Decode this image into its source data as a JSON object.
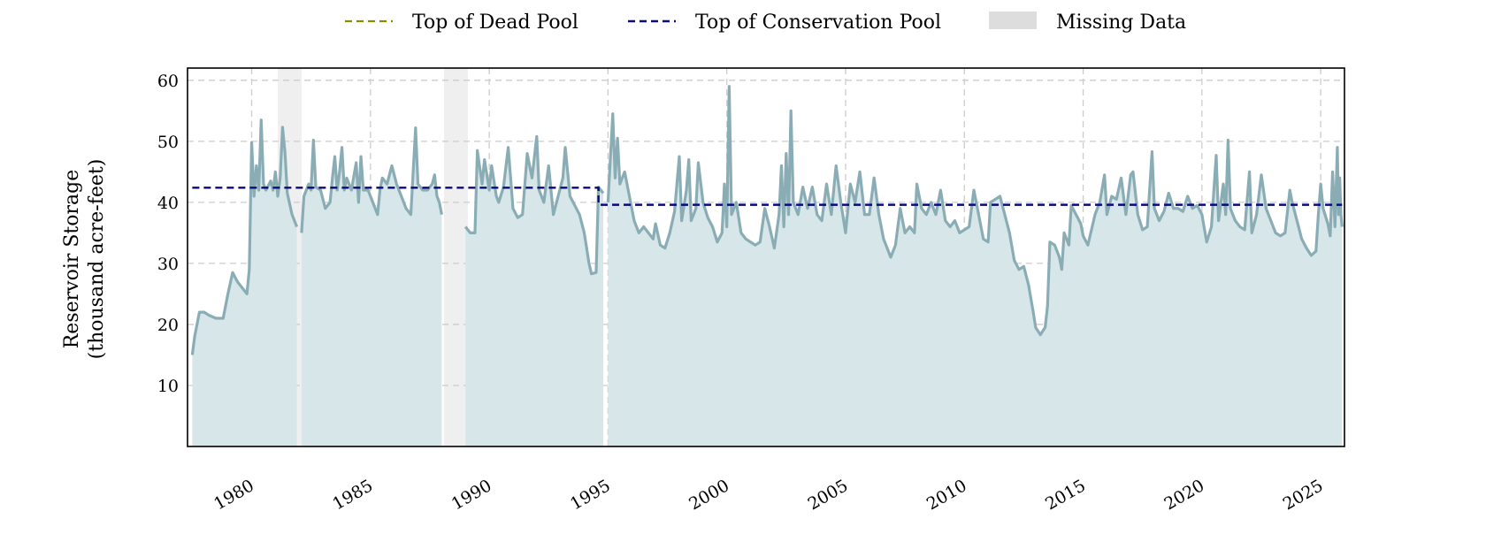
{
  "colors": {
    "storage_line": "#8aadb5",
    "storage_fill": "#d6e6e9",
    "dead_pool": "#8b8b00",
    "conservation_pool": "#0a0a7a",
    "missing": "#efefef",
    "missing_legend": "#dddddd",
    "grid": "#cccccc"
  },
  "chart_data": {
    "type": "area",
    "xlabel": "",
    "ylabel": [
      "Reservoir Storage",
      "(thousand acre-feet)"
    ],
    "xlim": [
      1977.3,
      2026.0
    ],
    "ylim": [
      0,
      62
    ],
    "x_ticks": [
      1980,
      1985,
      1990,
      1995,
      2000,
      2005,
      2010,
      2015,
      2020,
      2025
    ],
    "y_ticks": [
      10,
      20,
      30,
      40,
      50,
      60
    ],
    "grid": true,
    "legend": {
      "placement": "top-center",
      "entries": [
        "Top of Dead Pool",
        "Top of Conservation Pool",
        "Missing Data"
      ]
    },
    "missing_periods": [
      [
        1981.1,
        1982.1
      ],
      [
        1988.1,
        1989.1
      ]
    ],
    "top_of_dead_pool": [],
    "top_of_conservation_pool": [
      [
        1977.5,
        42.4
      ],
      [
        1994.6,
        42.4
      ],
      [
        1994.6,
        39.6
      ],
      [
        2025.9,
        39.6
      ]
    ],
    "series": [
      {
        "segment": 1,
        "points": [
          [
            1977.5,
            15
          ],
          [
            1977.6,
            18
          ],
          [
            1977.8,
            22
          ],
          [
            1978.0,
            22
          ],
          [
            1978.2,
            21.5
          ],
          [
            1978.5,
            21
          ],
          [
            1978.8,
            21
          ],
          [
            1979.0,
            25
          ],
          [
            1979.2,
            28.5
          ],
          [
            1979.4,
            27
          ],
          [
            1979.6,
            26
          ],
          [
            1979.8,
            25
          ],
          [
            1979.9,
            29
          ],
          [
            1980.0,
            49.8
          ],
          [
            1980.1,
            41
          ],
          [
            1980.2,
            46
          ],
          [
            1980.3,
            42
          ],
          [
            1980.4,
            53.5
          ],
          [
            1980.5,
            43
          ],
          [
            1980.6,
            42
          ],
          [
            1980.8,
            43.5
          ],
          [
            1980.9,
            42
          ],
          [
            1981.0,
            45
          ],
          [
            1981.1,
            41
          ],
          [
            1981.2,
            44
          ],
          [
            1981.3,
            52.3
          ],
          [
            1981.4,
            48.3
          ],
          [
            1981.5,
            41.5
          ],
          [
            1981.7,
            38
          ],
          [
            1981.9,
            36
          ]
        ]
      },
      {
        "segment": 2,
        "points": [
          [
            1982.1,
            35
          ],
          [
            1982.2,
            41
          ],
          [
            1982.3,
            42
          ],
          [
            1982.4,
            43
          ],
          [
            1982.5,
            42
          ],
          [
            1982.6,
            50.2
          ],
          [
            1982.7,
            42.5
          ],
          [
            1982.9,
            42
          ],
          [
            1983.1,
            39
          ],
          [
            1983.3,
            40
          ],
          [
            1983.4,
            44
          ],
          [
            1983.5,
            47.5
          ],
          [
            1983.6,
            42
          ],
          [
            1983.7,
            45
          ],
          [
            1983.8,
            49
          ],
          [
            1983.9,
            42
          ],
          [
            1984.0,
            44
          ],
          [
            1984.2,
            42
          ],
          [
            1984.4,
            46.5
          ],
          [
            1984.5,
            40
          ],
          [
            1984.6,
            47.5
          ],
          [
            1984.7,
            42
          ],
          [
            1984.9,
            42
          ],
          [
            1985.1,
            40
          ],
          [
            1985.3,
            38
          ],
          [
            1985.4,
            42
          ],
          [
            1985.5,
            44
          ],
          [
            1985.7,
            43
          ],
          [
            1985.9,
            46
          ],
          [
            1986.1,
            43
          ],
          [
            1986.3,
            41
          ],
          [
            1986.5,
            39
          ],
          [
            1986.7,
            38
          ],
          [
            1986.9,
            52.2
          ],
          [
            1987.0,
            43
          ],
          [
            1987.2,
            42
          ],
          [
            1987.4,
            42
          ],
          [
            1987.6,
            43
          ],
          [
            1987.7,
            44.5
          ],
          [
            1987.8,
            41
          ],
          [
            1987.9,
            40
          ],
          [
            1988.0,
            38
          ]
        ]
      },
      {
        "segment": 3,
        "points": [
          [
            1989.0,
            36
          ],
          [
            1989.2,
            35
          ],
          [
            1989.4,
            35
          ],
          [
            1989.5,
            48.5
          ],
          [
            1989.7,
            43
          ],
          [
            1989.8,
            47
          ],
          [
            1990.0,
            42
          ],
          [
            1990.1,
            46
          ],
          [
            1990.3,
            41
          ],
          [
            1990.4,
            40
          ],
          [
            1990.6,
            42.5
          ],
          [
            1990.8,
            49
          ],
          [
            1991.0,
            39
          ],
          [
            1991.2,
            37.5
          ],
          [
            1991.4,
            38
          ],
          [
            1991.6,
            48
          ],
          [
            1991.8,
            44
          ],
          [
            1992.0,
            50.8
          ],
          [
            1992.1,
            42
          ],
          [
            1992.3,
            40
          ],
          [
            1992.5,
            46
          ],
          [
            1992.7,
            38
          ],
          [
            1992.9,
            41
          ],
          [
            1993.1,
            44
          ],
          [
            1993.2,
            49
          ],
          [
            1993.4,
            41
          ],
          [
            1993.6,
            39.5
          ],
          [
            1993.8,
            38
          ],
          [
            1994.0,
            35
          ],
          [
            1994.2,
            30
          ],
          [
            1994.3,
            28.3
          ],
          [
            1994.5,
            28.5
          ],
          [
            1994.6,
            42.5
          ],
          [
            1994.8,
            41.5
          ]
        ]
      },
      {
        "segment": 4,
        "points": [
          [
            1995.0,
            40
          ],
          [
            1995.2,
            54.5
          ],
          [
            1995.3,
            44
          ],
          [
            1995.4,
            50.5
          ],
          [
            1995.5,
            43
          ],
          [
            1995.7,
            45
          ],
          [
            1995.9,
            41
          ],
          [
            1996.1,
            37
          ],
          [
            1996.3,
            35
          ],
          [
            1996.5,
            36
          ],
          [
            1996.7,
            35
          ],
          [
            1996.9,
            34
          ],
          [
            1997.0,
            36.5
          ],
          [
            1997.2,
            33
          ],
          [
            1997.4,
            32.5
          ],
          [
            1997.6,
            35
          ],
          [
            1997.8,
            38.5
          ],
          [
            1998.0,
            47.5
          ],
          [
            1998.1,
            37
          ],
          [
            1998.3,
            42
          ],
          [
            1998.4,
            47
          ],
          [
            1998.5,
            37
          ],
          [
            1998.7,
            39
          ],
          [
            1998.8,
            46.5
          ],
          [
            1999.0,
            40
          ],
          [
            1999.2,
            37.5
          ],
          [
            1999.4,
            36
          ],
          [
            1999.6,
            33.5
          ],
          [
            1999.8,
            35
          ],
          [
            1999.9,
            43
          ],
          [
            2000.0,
            36
          ],
          [
            2000.1,
            59
          ],
          [
            2000.2,
            38
          ],
          [
            2000.4,
            40
          ],
          [
            2000.6,
            35
          ],
          [
            2000.8,
            34
          ],
          [
            2001.0,
            33.5
          ],
          [
            2001.2,
            33
          ],
          [
            2001.4,
            33.5
          ],
          [
            2001.6,
            39
          ],
          [
            2001.8,
            36
          ],
          [
            2002.0,
            32.5
          ],
          [
            2002.2,
            38
          ],
          [
            2002.3,
            46
          ],
          [
            2002.4,
            36
          ],
          [
            2002.5,
            48
          ],
          [
            2002.6,
            38
          ],
          [
            2002.7,
            55
          ],
          [
            2002.8,
            40
          ],
          [
            2003.0,
            38
          ],
          [
            2003.2,
            42.5
          ],
          [
            2003.4,
            39
          ],
          [
            2003.6,
            42.5
          ],
          [
            2003.8,
            38
          ],
          [
            2004.0,
            37
          ],
          [
            2004.2,
            43
          ],
          [
            2004.4,
            38
          ],
          [
            2004.6,
            46
          ],
          [
            2004.8,
            40
          ],
          [
            2005.0,
            35
          ],
          [
            2005.2,
            43
          ],
          [
            2005.4,
            40
          ],
          [
            2005.6,
            45
          ],
          [
            2005.8,
            38
          ],
          [
            2006.0,
            38
          ],
          [
            2006.2,
            44
          ],
          [
            2006.4,
            38
          ],
          [
            2006.6,
            34
          ],
          [
            2006.9,
            31
          ],
          [
            2007.1,
            33
          ],
          [
            2007.3,
            39
          ],
          [
            2007.5,
            35
          ],
          [
            2007.7,
            36
          ],
          [
            2007.9,
            35
          ],
          [
            2008.0,
            43
          ],
          [
            2008.2,
            39
          ],
          [
            2008.4,
            38
          ],
          [
            2008.6,
            40
          ],
          [
            2008.8,
            38
          ],
          [
            2009.0,
            42
          ],
          [
            2009.2,
            37
          ],
          [
            2009.4,
            36
          ],
          [
            2009.6,
            37
          ],
          [
            2009.8,
            35
          ],
          [
            2010.0,
            35.5
          ],
          [
            2010.2,
            36
          ],
          [
            2010.4,
            42
          ],
          [
            2010.6,
            38
          ],
          [
            2010.8,
            34
          ],
          [
            2011.0,
            33.5
          ],
          [
            2011.1,
            40
          ],
          [
            2011.3,
            40.5
          ],
          [
            2011.5,
            41
          ],
          [
            2011.7,
            38
          ],
          [
            2011.9,
            35
          ],
          [
            2012.1,
            30.5
          ],
          [
            2012.3,
            29
          ],
          [
            2012.5,
            29.5
          ],
          [
            2012.7,
            26.5
          ],
          [
            2012.9,
            22
          ],
          [
            2013.0,
            19.5
          ],
          [
            2013.2,
            18.3
          ],
          [
            2013.4,
            19.5
          ],
          [
            2013.5,
            23
          ],
          [
            2013.6,
            33.5
          ],
          [
            2013.8,
            33
          ],
          [
            2014.0,
            31
          ],
          [
            2014.1,
            29
          ],
          [
            2014.2,
            35
          ],
          [
            2014.4,
            33
          ],
          [
            2014.5,
            39.5
          ],
          [
            2014.7,
            38
          ],
          [
            2014.9,
            36.5
          ],
          [
            2015.0,
            34.5
          ],
          [
            2015.2,
            33
          ],
          [
            2015.5,
            38
          ],
          [
            2015.7,
            40
          ],
          [
            2015.9,
            44.5
          ],
          [
            2016.0,
            38
          ],
          [
            2016.2,
            41
          ],
          [
            2016.4,
            40.5
          ],
          [
            2016.6,
            44
          ],
          [
            2016.8,
            38
          ],
          [
            2017.0,
            44.5
          ],
          [
            2017.1,
            45
          ],
          [
            2017.3,
            38
          ],
          [
            2017.5,
            35.5
          ],
          [
            2017.7,
            36
          ],
          [
            2017.9,
            48.3
          ],
          [
            2018.0,
            39
          ],
          [
            2018.2,
            37
          ],
          [
            2018.4,
            38.5
          ],
          [
            2018.6,
            41.5
          ],
          [
            2018.8,
            39
          ],
          [
            2019.0,
            39
          ],
          [
            2019.2,
            38.5
          ],
          [
            2019.4,
            41
          ],
          [
            2019.6,
            39
          ],
          [
            2019.8,
            39.5
          ],
          [
            2020.0,
            38
          ],
          [
            2020.2,
            33.5
          ],
          [
            2020.4,
            36
          ],
          [
            2020.6,
            47.7
          ],
          [
            2020.7,
            37
          ],
          [
            2020.9,
            43
          ],
          [
            2021.0,
            38
          ],
          [
            2021.1,
            50.2
          ],
          [
            2021.2,
            39
          ],
          [
            2021.4,
            37
          ],
          [
            2021.6,
            36
          ],
          [
            2021.8,
            35.5
          ],
          [
            2022.0,
            45
          ],
          [
            2022.1,
            35
          ],
          [
            2022.3,
            38
          ],
          [
            2022.5,
            44.5
          ],
          [
            2022.7,
            39
          ],
          [
            2022.9,
            37
          ],
          [
            2023.1,
            35
          ],
          [
            2023.3,
            34.5
          ],
          [
            2023.5,
            35
          ],
          [
            2023.7,
            42
          ],
          [
            2023.8,
            40
          ],
          [
            2024.0,
            37
          ],
          [
            2024.2,
            34
          ],
          [
            2024.4,
            32.5
          ],
          [
            2024.6,
            31.3
          ],
          [
            2024.8,
            32
          ],
          [
            2024.9,
            38
          ],
          [
            2025.0,
            43
          ],
          [
            2025.1,
            39
          ],
          [
            2025.3,
            36.5
          ],
          [
            2025.4,
            34.5
          ],
          [
            2025.5,
            45
          ],
          [
            2025.6,
            36
          ],
          [
            2025.7,
            49
          ],
          [
            2025.75,
            38
          ],
          [
            2025.8,
            44
          ],
          [
            2025.85,
            38
          ],
          [
            2025.9,
            36
          ]
        ]
      }
    ]
  }
}
